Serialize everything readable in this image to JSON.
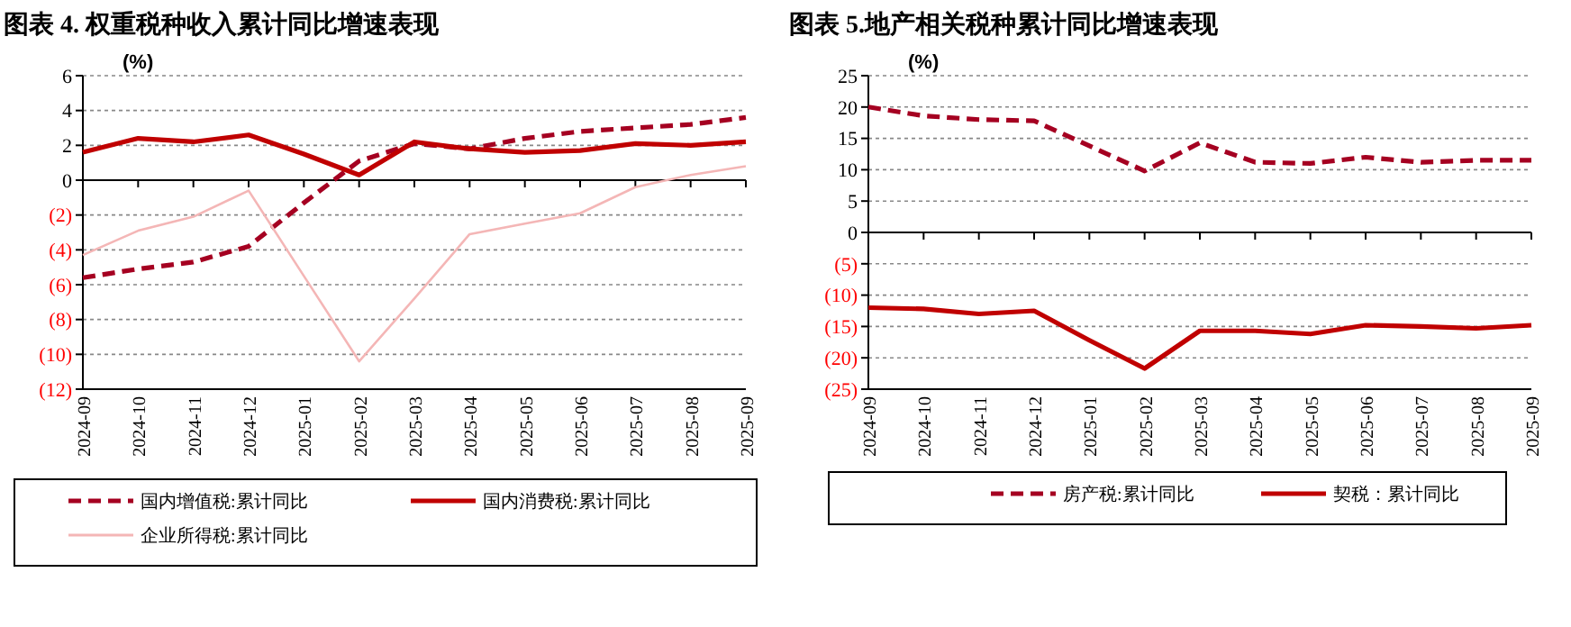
{
  "chart_data": [
    {
      "type": "line",
      "title": "图表 4. 权重税种收入累计同比增速表现",
      "ylabel": "(%)",
      "categories": [
        "2024-09",
        "2024-10",
        "2024-11",
        "2024-12",
        "2025-01",
        "2025-02",
        "2025-03",
        "2025-04",
        "2025-05",
        "2025-06",
        "2025-07",
        "2025-08",
        "2025-09"
      ],
      "series": [
        {
          "name": "国内增值税:累计同比",
          "color": "#a50021",
          "line_style": "dashed",
          "values": [
            -5.6,
            -5.1,
            -4.7,
            -3.8,
            -1.3,
            1.1,
            2.1,
            1.8,
            2.4,
            2.8,
            3.0,
            3.2,
            3.6
          ]
        },
        {
          "name": "国内消费税:累计同比",
          "color": "#c00000",
          "line_style": "solid",
          "values": [
            1.6,
            2.4,
            2.2,
            2.6,
            1.5,
            0.3,
            2.2,
            1.8,
            1.6,
            1.7,
            2.1,
            2.0,
            2.2
          ]
        },
        {
          "name": "企业所得税:累计同比",
          "color": "#f4b6b6",
          "line_style": "solid",
          "values": [
            -4.3,
            -2.9,
            -2.1,
            -0.6,
            -5.5,
            -10.4,
            -6.8,
            -3.1,
            -2.5,
            -1.9,
            -0.4,
            0.3,
            0.8
          ]
        }
      ],
      "ylim": [
        -12,
        6
      ],
      "yticks": [
        {
          "value": -12,
          "label": "(12)"
        },
        {
          "value": -10,
          "label": "(10)"
        },
        {
          "value": -8,
          "label": "(8)"
        },
        {
          "value": -6,
          "label": "(6)"
        },
        {
          "value": -4,
          "label": "(4)"
        },
        {
          "value": -2,
          "label": "(2)"
        },
        0,
        2,
        4,
        6
      ],
      "grid": "y",
      "legend": "bottom",
      "marker": "none"
    },
    {
      "type": "line",
      "title": "图表 5.地产相关税种累计同比增速表现",
      "ylabel": "(%)",
      "categories": [
        "2024-09",
        "2024-10",
        "2024-11",
        "2024-12",
        "2025-01",
        "2025-02",
        "2025-03",
        "2025-04",
        "2025-05",
        "2025-06",
        "2025-07",
        "2025-08",
        "2025-09"
      ],
      "series": [
        {
          "name": "房产税:累计同比",
          "color": "#a50021",
          "line_style": "dashed",
          "values": [
            20,
            18.6,
            18,
            17.8,
            13.8,
            9.8,
            14.3,
            11.2,
            11,
            12,
            11.2,
            11.5,
            11.5
          ]
        },
        {
          "name": "契税：累计同比",
          "color": "#c00000",
          "line_style": "solid",
          "values": [
            -12,
            -12.2,
            -13,
            -12.5,
            -17.2,
            -21.7,
            -15.7,
            -15.7,
            -16.2,
            -14.8,
            -15,
            -15.3,
            -14.8
          ]
        }
      ],
      "ylim": [
        -25,
        25
      ],
      "yticks": [
        {
          "value": -25,
          "label": "(25)"
        },
        {
          "value": -20,
          "label": "(20)"
        },
        {
          "value": -15,
          "label": "(15)"
        },
        {
          "value": -10,
          "label": "(10)"
        },
        {
          "value": -5,
          "label": "(5)"
        },
        0,
        5,
        10,
        15,
        20,
        25
      ],
      "grid": "y",
      "legend": "bottom",
      "marker": "none"
    }
  ]
}
